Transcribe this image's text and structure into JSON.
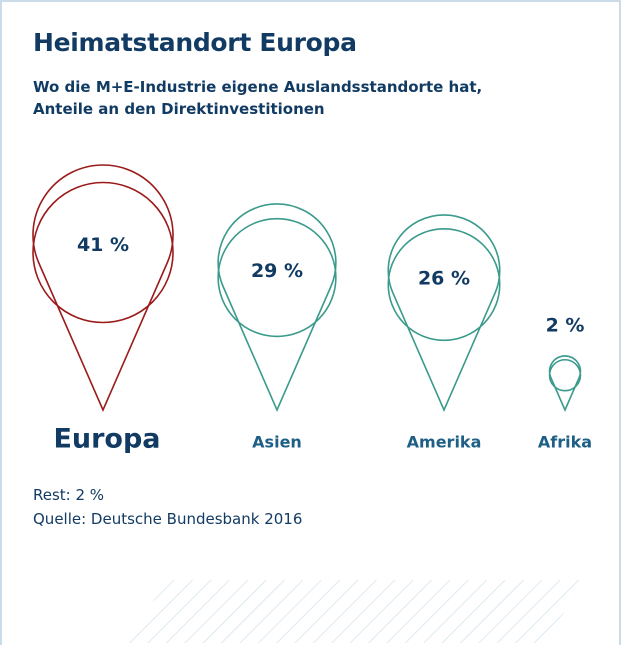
{
  "chart_data": {
    "type": "pin",
    "title": "Heimatstandort Europa",
    "subtitle": "Wo die M+E-Industrie eigene Auslandsstandorte hat, Anteile an den Direktinvestitionen",
    "categories": [
      "Europa",
      "Asien",
      "Amerika",
      "Afrika"
    ],
    "values": [
      41,
      29,
      26,
      2
    ],
    "value_labels": [
      "41 %",
      "29 %",
      "26 %",
      "2 %"
    ],
    "colors": [
      "#9b1b1b",
      "#3a9a8c",
      "#3a9a8c",
      "#3a9a8c"
    ],
    "note": "Rest: 2 %",
    "source": "Quelle: Deutsche Bundesbank 2016"
  }
}
